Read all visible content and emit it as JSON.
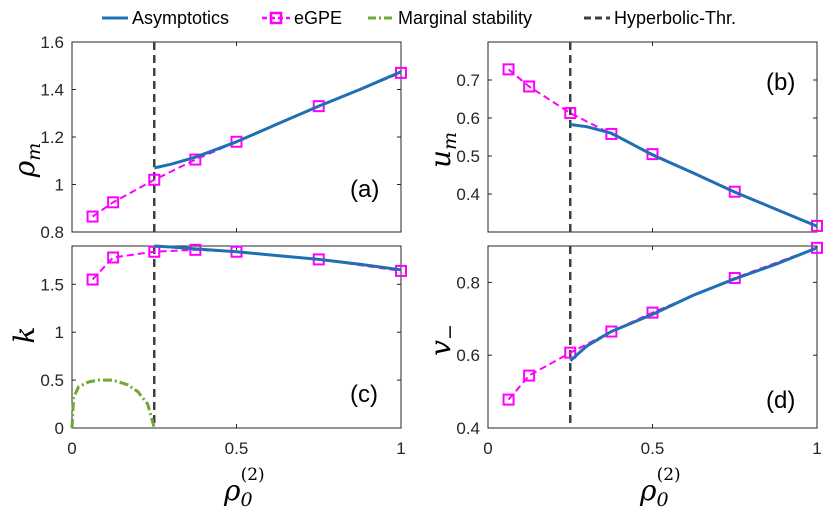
{
  "legend": [
    {
      "key": "asym",
      "label": "Asymptotics",
      "color": "#1f6fb2",
      "style": "solid"
    },
    {
      "key": "egpe",
      "label": "eGPE",
      "color": "#ff00ff",
      "style": "dashed-square"
    },
    {
      "key": "marg",
      "label": "Marginal stability",
      "color": "#6fa832",
      "style": "dashdot"
    },
    {
      "key": "thr",
      "label": "Hyperbolic-Thr.",
      "color": "#404040",
      "style": "dashed"
    }
  ],
  "chart_data": [
    {
      "type": "line",
      "panel": "(a)",
      "ylabel": "ρ_m",
      "xlabel": "",
      "xlim": [
        0,
        1
      ],
      "ylim": [
        0.8,
        1.6
      ],
      "xticks": [
        0,
        0.5,
        1
      ],
      "xtick_labels": [
        "",
        "",
        ""
      ],
      "yticks": [
        0.8,
        1,
        1.2,
        1.4,
        1.6
      ],
      "ytick_labels": [
        "0.8",
        "1",
        "1.2",
        "1.4",
        "1.6"
      ],
      "threshold_x": 0.25,
      "series": [
        {
          "name": "Asymptotics",
          "x": [
            0.25,
            0.3,
            0.375,
            0.5,
            0.625,
            0.75,
            0.875,
            1.0
          ],
          "y": [
            1.07,
            1.085,
            1.115,
            1.18,
            1.255,
            1.33,
            1.4,
            1.475
          ]
        },
        {
          "name": "eGPE",
          "x": [
            0.0625,
            0.125,
            0.25,
            0.375,
            0.5,
            0.75,
            1.0
          ],
          "y": [
            0.865,
            0.925,
            1.02,
            1.105,
            1.18,
            1.33,
            1.47
          ],
          "markers": true
        }
      ]
    },
    {
      "type": "line",
      "panel": "(b)",
      "ylabel": "u_m",
      "xlabel": "",
      "xlim": [
        0,
        1
      ],
      "ylim": [
        0.3,
        0.8
      ],
      "xticks": [
        0,
        0.5,
        1
      ],
      "xtick_labels": [
        "",
        "",
        ""
      ],
      "yticks": [
        0.4,
        0.5,
        0.6,
        0.7
      ],
      "ytick_labels": [
        "0.4",
        "0.5",
        "0.6",
        "0.7"
      ],
      "threshold_x": 0.25,
      "series": [
        {
          "name": "Asymptotics",
          "x": [
            0.25,
            0.3,
            0.375,
            0.5,
            0.625,
            0.75,
            0.875,
            1.0
          ],
          "y": [
            0.583,
            0.577,
            0.56,
            0.503,
            0.455,
            0.405,
            0.36,
            0.315
          ]
        },
        {
          "name": "eGPE",
          "x": [
            0.0625,
            0.125,
            0.25,
            0.375,
            0.5,
            0.75,
            1.0
          ],
          "y": [
            0.728,
            0.683,
            0.613,
            0.558,
            0.505,
            0.406,
            0.316
          ],
          "markers": true
        }
      ]
    },
    {
      "type": "line",
      "panel": "(c)",
      "ylabel": "k",
      "xlabel": "ρ_0^(2)",
      "xlim": [
        0,
        1
      ],
      "ylim": [
        0,
        1.9
      ],
      "xticks": [
        0,
        0.5,
        1
      ],
      "xtick_labels": [
        "0",
        "0.5",
        "1"
      ],
      "yticks": [
        0,
        0.5,
        1,
        1.5
      ],
      "ytick_labels": [
        "0",
        "0.5",
        "1",
        "1.5"
      ],
      "threshold_x": 0.25,
      "series": [
        {
          "name": "Asymptotics",
          "x": [
            0.25,
            0.3,
            0.375,
            0.5,
            0.625,
            0.75,
            0.875,
            1.0
          ],
          "y": [
            1.9,
            1.89,
            1.87,
            1.84,
            1.8,
            1.76,
            1.71,
            1.65
          ]
        },
        {
          "name": "eGPE",
          "x": [
            0.0625,
            0.125,
            0.25,
            0.375,
            0.5,
            0.75,
            1.0
          ],
          "y": [
            1.55,
            1.78,
            1.84,
            1.86,
            1.84,
            1.76,
            1.64
          ],
          "markers": true
        },
        {
          "name": "Marginal stability",
          "x": [
            0,
            0.005,
            0.02,
            0.05,
            0.08,
            0.125,
            0.17,
            0.2,
            0.23,
            0.25
          ],
          "y": [
            0,
            0.32,
            0.43,
            0.48,
            0.5,
            0.5,
            0.45,
            0.38,
            0.25,
            0
          ]
        }
      ]
    },
    {
      "type": "line",
      "panel": "(d)",
      "ylabel": "v_−",
      "xlabel": "ρ_0^(2)",
      "xlim": [
        0,
        1
      ],
      "ylim": [
        0.4,
        0.9
      ],
      "xticks": [
        0,
        0.5,
        1
      ],
      "xtick_labels": [
        "0",
        "0.5",
        "1"
      ],
      "yticks": [
        0.4,
        0.6,
        0.8
      ],
      "ytick_labels": [
        "0.4",
        "0.6",
        "0.8"
      ],
      "threshold_x": 0.25,
      "series": [
        {
          "name": "Asymptotics",
          "x": [
            0.25,
            0.3,
            0.375,
            0.5,
            0.625,
            0.75,
            0.875,
            1.0
          ],
          "y": [
            0.585,
            0.625,
            0.665,
            0.712,
            0.765,
            0.81,
            0.85,
            0.895
          ]
        },
        {
          "name": "eGPE",
          "x": [
            0.0625,
            0.125,
            0.25,
            0.375,
            0.5,
            0.75,
            1.0
          ],
          "y": [
            0.478,
            0.544,
            0.607,
            0.665,
            0.717,
            0.812,
            0.895
          ],
          "markers": true
        }
      ]
    }
  ]
}
